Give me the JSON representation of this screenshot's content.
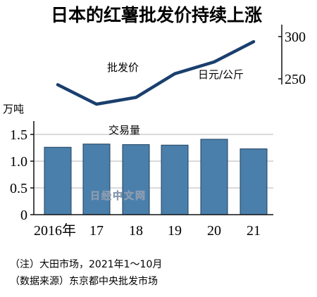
{
  "title": "日本的红薯批发价持续上涨",
  "chart_data": [
    {
      "type": "line",
      "name": "批发价",
      "unit": "日元/公斤",
      "categories": [
        "2016年",
        "17",
        "18",
        "19",
        "20",
        "21"
      ],
      "values": [
        243,
        220,
        228,
        256,
        270,
        294
      ],
      "ylim": [
        210,
        310
      ],
      "yticks": [
        "300",
        "250"
      ],
      "ytick_values": [
        300,
        250
      ],
      "color": "#1a3f6e"
    },
    {
      "type": "bar",
      "name": "交易量",
      "unit": "万吨",
      "categories": [
        "2016年",
        "17",
        "18",
        "19",
        "20",
        "21"
      ],
      "values": [
        1.26,
        1.32,
        1.31,
        1.3,
        1.41,
        1.23
      ],
      "ylim": [
        0,
        1.75
      ],
      "yticks": [
        "1.5",
        "1.0",
        "0.5",
        "0"
      ],
      "ytick_values": [
        1.5,
        1.0,
        0.5,
        0
      ],
      "color": "#4a7fab",
      "grid": true
    }
  ],
  "notes": {
    "note1": "（注）大田市场，2021年1～10月",
    "note2": "（数据来源）东京都中央批发市场"
  },
  "watermark": "日经中文网"
}
